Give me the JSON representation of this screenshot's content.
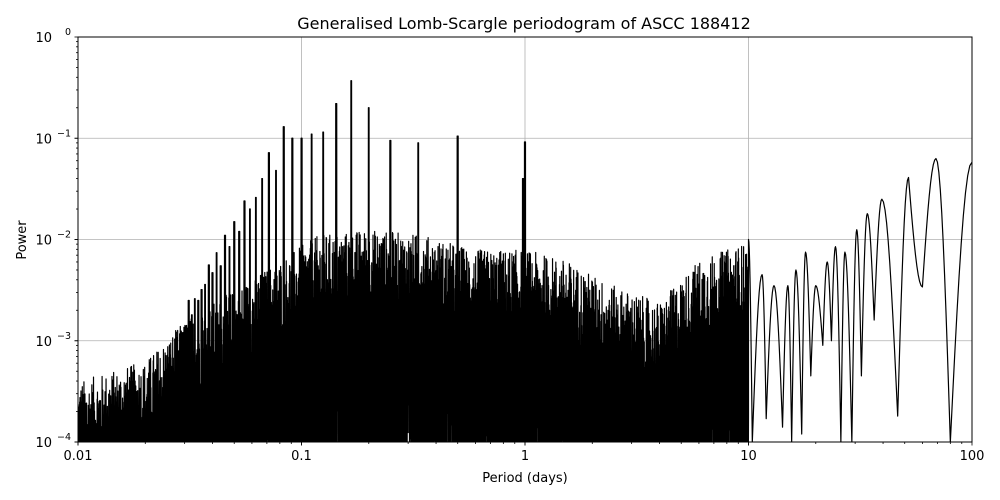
{
  "chart_data": {
    "type": "line",
    "title": "Generalised Lomb-Scargle periodogram of ASCC 188412",
    "xlabel": "Period (days)",
    "ylabel": "Power",
    "xscale": "log",
    "yscale": "log",
    "xlim": [
      0.01,
      100
    ],
    "ylim": [
      0.0001,
      1
    ],
    "grid": true,
    "xticks": [
      {
        "value": 0.01,
        "label": "0.01"
      },
      {
        "value": 0.1,
        "label": "0.1"
      },
      {
        "value": 1,
        "label": "1"
      },
      {
        "value": 10,
        "label": "10"
      },
      {
        "value": 100,
        "label": "100"
      }
    ],
    "yticks": [
      {
        "value": 1,
        "base": "10",
        "exp": "0"
      },
      {
        "value": 0.1,
        "base": "10",
        "exp": "−1"
      },
      {
        "value": 0.01,
        "base": "10",
        "exp": "−2"
      },
      {
        "value": 0.001,
        "base": "10",
        "exp": "−3"
      },
      {
        "value": 0.0001,
        "base": "10",
        "exp": "−4"
      }
    ],
    "line_color": "#000000",
    "grid_color": "#b0b0b0",
    "peaks": [
      {
        "period": 0.167,
        "power": 0.37
      },
      {
        "period": 0.143,
        "power": 0.22
      },
      {
        "period": 0.2,
        "power": 0.2
      },
      {
        "period": 0.125,
        "power": 0.115
      },
      {
        "period": 0.111,
        "power": 0.11
      },
      {
        "period": 0.1,
        "power": 0.1
      },
      {
        "period": 0.0909,
        "power": 0.1
      },
      {
        "period": 0.0833,
        "power": 0.13
      },
      {
        "period": 0.0769,
        "power": 0.048
      },
      {
        "period": 0.0714,
        "power": 0.072
      },
      {
        "period": 0.0667,
        "power": 0.04
      },
      {
        "period": 0.0625,
        "power": 0.026
      },
      {
        "period": 0.0588,
        "power": 0.02
      },
      {
        "period": 0.0556,
        "power": 0.024
      },
      {
        "period": 0.0526,
        "power": 0.012
      },
      {
        "period": 0.05,
        "power": 0.015
      },
      {
        "period": 0.0476,
        "power": 0.0085
      },
      {
        "period": 0.0455,
        "power": 0.011
      },
      {
        "period": 0.0435,
        "power": 0.0055
      },
      {
        "period": 0.0417,
        "power": 0.0074
      },
      {
        "period": 0.04,
        "power": 0.0047
      },
      {
        "period": 0.0385,
        "power": 0.0056
      },
      {
        "period": 0.037,
        "power": 0.0036
      },
      {
        "period": 0.0357,
        "power": 0.0032
      },
      {
        "period": 0.0345,
        "power": 0.0025
      },
      {
        "period": 0.0333,
        "power": 0.0026
      },
      {
        "period": 0.0323,
        "power": 0.0018
      },
      {
        "period": 0.0313,
        "power": 0.0025
      },
      {
        "period": 0.0303,
        "power": 0.0014
      },
      {
        "period": 0.0294,
        "power": 0.0012
      },
      {
        "period": 0.25,
        "power": 0.095
      },
      {
        "period": 0.333,
        "power": 0.09
      },
      {
        "period": 0.5,
        "power": 0.105
      },
      {
        "period": 1.0,
        "power": 0.092
      },
      {
        "period": 0.98,
        "power": 0.04
      }
    ],
    "noise_envelope": [
      {
        "period": 0.01,
        "power": 0.00025
      },
      {
        "period": 0.02,
        "power": 0.0004
      },
      {
        "period": 0.03,
        "power": 0.001
      },
      {
        "period": 0.05,
        "power": 0.002
      },
      {
        "period": 0.08,
        "power": 0.004
      },
      {
        "period": 0.12,
        "power": 0.007
      },
      {
        "period": 0.2,
        "power": 0.008
      },
      {
        "period": 0.35,
        "power": 0.007
      },
      {
        "period": 0.6,
        "power": 0.005
      },
      {
        "period": 1.0,
        "power": 0.005
      },
      {
        "period": 1.5,
        "power": 0.004
      },
      {
        "period": 2.5,
        "power": 0.0022
      },
      {
        "period": 4.0,
        "power": 0.0015
      },
      {
        "period": 6.0,
        "power": 0.004
      },
      {
        "period": 10.0,
        "power": 0.006
      }
    ],
    "long_period_lobes": [
      {
        "period": 10.0,
        "power": 0.01
      },
      {
        "period": 11.5,
        "power": 0.0045
      },
      {
        "period": 13.0,
        "power": 0.0035
      },
      {
        "period": 15.0,
        "power": 0.0035
      },
      {
        "period": 16.3,
        "power": 0.005
      },
      {
        "period": 18.0,
        "power": 0.0075
      },
      {
        "period": 20.0,
        "power": 0.0035
      },
      {
        "period": 22.5,
        "power": 0.006
      },
      {
        "period": 24.5,
        "power": 0.0085
      },
      {
        "period": 27.0,
        "power": 0.0075
      },
      {
        "period": 30.5,
        "power": 0.0125
      },
      {
        "period": 34.0,
        "power": 0.018
      },
      {
        "period": 39.5,
        "power": 0.025
      },
      {
        "period": 52.0,
        "power": 0.041
      },
      {
        "period": 69.0,
        "power": 0.063
      },
      {
        "period": 100.0,
        "power": 0.058
      }
    ],
    "long_period_troughs": [
      {
        "period": 10.4,
        "power": 0.0001
      },
      {
        "period": 12.0,
        "power": 0.00017
      },
      {
        "period": 14.2,
        "power": 0.00014
      },
      {
        "period": 15.6,
        "power": 0.0001
      },
      {
        "period": 17.3,
        "power": 0.00012
      },
      {
        "period": 19.0,
        "power": 0.00045
      },
      {
        "period": 21.5,
        "power": 0.0009
      },
      {
        "period": 23.5,
        "power": 0.001
      },
      {
        "period": 25.9,
        "power": 0.0001
      },
      {
        "period": 29.0,
        "power": 0.0001
      },
      {
        "period": 32.0,
        "power": 0.00045
      },
      {
        "period": 36.5,
        "power": 0.0016
      },
      {
        "period": 46.5,
        "power": 0.00018
      },
      {
        "period": 60.0,
        "power": 0.0034
      },
      {
        "period": 80.0,
        "power": 0.0001
      }
    ]
  }
}
